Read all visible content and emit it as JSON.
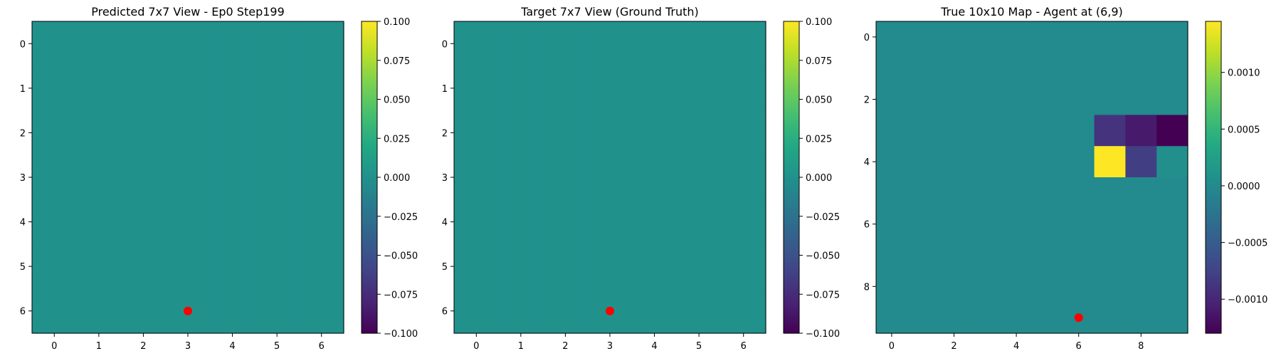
{
  "colormap_name": "viridis",
  "marker_color": "#ff0000",
  "chart_data": [
    {
      "type": "heatmap",
      "title": "Predicted 7x7 View - Ep0 Step199",
      "rows": 7,
      "cols": 7,
      "xticks": [
        "0",
        "1",
        "2",
        "3",
        "4",
        "5",
        "6"
      ],
      "yticks": [
        "0",
        "1",
        "2",
        "3",
        "4",
        "5",
        "6"
      ],
      "values": [
        [
          0,
          0,
          0,
          0,
          0,
          0,
          0
        ],
        [
          0,
          0,
          0,
          0,
          0,
          0,
          0
        ],
        [
          0,
          0,
          0,
          0,
          0,
          0,
          0
        ],
        [
          0,
          0,
          0,
          0,
          0,
          0,
          0
        ],
        [
          0,
          0,
          0,
          0,
          0,
          0,
          0
        ],
        [
          0,
          0,
          0,
          0,
          0,
          0,
          0
        ],
        [
          0,
          0,
          0,
          0,
          0,
          0,
          0
        ]
      ],
      "vmin": -0.1,
      "vmax": 0.1,
      "colorbar_ticks": [
        0.1,
        0.075,
        0.05,
        0.025,
        0.0,
        -0.025,
        -0.05,
        -0.075,
        -0.1
      ],
      "colorbar_tick_labels": [
        "0.100",
        "0.075",
        "0.050",
        "0.025",
        "0.000",
        "−0.025",
        "−0.050",
        "−0.075",
        "−0.100"
      ],
      "marker": {
        "x": 3,
        "y": 6
      }
    },
    {
      "type": "heatmap",
      "title": "Target 7x7 View (Ground Truth)",
      "rows": 7,
      "cols": 7,
      "xticks": [
        "0",
        "1",
        "2",
        "3",
        "4",
        "5",
        "6"
      ],
      "yticks": [
        "0",
        "1",
        "2",
        "3",
        "4",
        "5",
        "6"
      ],
      "values": [
        [
          0,
          0,
          0,
          0,
          0,
          0,
          0
        ],
        [
          0,
          0,
          0,
          0,
          0,
          0,
          0
        ],
        [
          0,
          0,
          0,
          0,
          0,
          0,
          0
        ],
        [
          0,
          0,
          0,
          0,
          0,
          0,
          0
        ],
        [
          0,
          0,
          0,
          0,
          0,
          0,
          0
        ],
        [
          0,
          0,
          0,
          0,
          0,
          0,
          0
        ],
        [
          0,
          0,
          0,
          0,
          0,
          0,
          0
        ]
      ],
      "vmin": -0.1,
      "vmax": 0.1,
      "colorbar_ticks": [
        0.1,
        0.075,
        0.05,
        0.025,
        0.0,
        -0.025,
        -0.05,
        -0.075,
        -0.1
      ],
      "colorbar_tick_labels": [
        "0.100",
        "0.075",
        "0.050",
        "0.025",
        "0.000",
        "−0.025",
        "−0.050",
        "−0.075",
        "−0.100"
      ],
      "marker": {
        "x": 3,
        "y": 6
      }
    },
    {
      "type": "heatmap",
      "title": "True 10x10 Map - Agent at (6,9)",
      "rows": 10,
      "cols": 10,
      "xticks": [
        "0",
        "2",
        "4",
        "6",
        "8"
      ],
      "yticks": [
        "0",
        "2",
        "4",
        "6",
        "8"
      ],
      "values": [
        [
          0,
          0,
          0,
          0,
          0,
          0,
          0,
          0,
          0,
          0
        ],
        [
          0,
          0,
          0,
          0,
          0,
          0,
          0,
          0,
          0,
          0
        ],
        [
          0,
          0,
          0,
          0,
          0,
          0,
          0,
          0,
          0,
          0
        ],
        [
          0,
          0,
          0,
          0,
          0,
          0,
          0,
          -0.0009,
          -0.0011,
          -0.0013
        ],
        [
          0,
          0,
          0,
          0,
          0,
          0,
          0,
          0.00145,
          -0.0008,
          5e-05
        ],
        [
          0,
          0,
          0,
          0,
          0,
          0,
          0,
          0,
          0,
          0
        ],
        [
          0,
          0,
          0,
          0,
          0,
          0,
          0,
          0,
          0,
          0
        ],
        [
          0,
          0,
          0,
          0,
          0,
          0,
          0,
          0,
          0,
          0
        ],
        [
          0,
          0,
          0,
          0,
          0,
          0,
          0,
          0,
          0,
          0
        ],
        [
          0,
          0,
          0,
          0,
          0,
          0,
          0,
          0,
          0,
          0
        ]
      ],
      "vmin": -0.0013,
      "vmax": 0.00145,
      "colorbar_ticks": [
        0.001,
        0.0005,
        0.0,
        -0.0005,
        -0.001
      ],
      "colorbar_tick_labels": [
        "0.0010",
        "0.0005",
        "0.0000",
        "−0.0005",
        "−0.0010"
      ],
      "marker": {
        "x": 6,
        "y": 9
      }
    }
  ]
}
